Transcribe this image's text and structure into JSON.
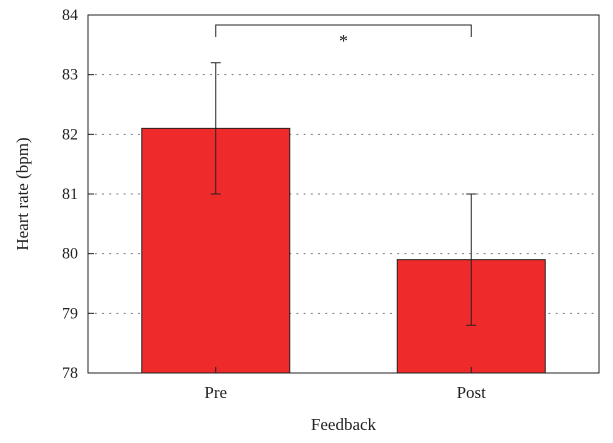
{
  "chart_data": {
    "type": "bar",
    "title": "",
    "xlabel": "Feedback",
    "ylabel": "Heart rate (bpm)",
    "categories": [
      "Pre",
      "Post"
    ],
    "values": [
      82.1,
      79.9
    ],
    "error": [
      {
        "low": 81.0,
        "high": 83.2
      },
      {
        "low": 78.8,
        "high": 81.0
      }
    ],
    "ylim": [
      78,
      84
    ],
    "yticks": [
      78,
      79,
      80,
      81,
      82,
      83,
      84
    ],
    "grid": "dotted-horizontal",
    "bar_color": "#ee2a2a",
    "annotations": [
      {
        "text": "*",
        "between": [
          "Pre",
          "Post"
        ],
        "kind": "significance-bracket"
      }
    ]
  }
}
